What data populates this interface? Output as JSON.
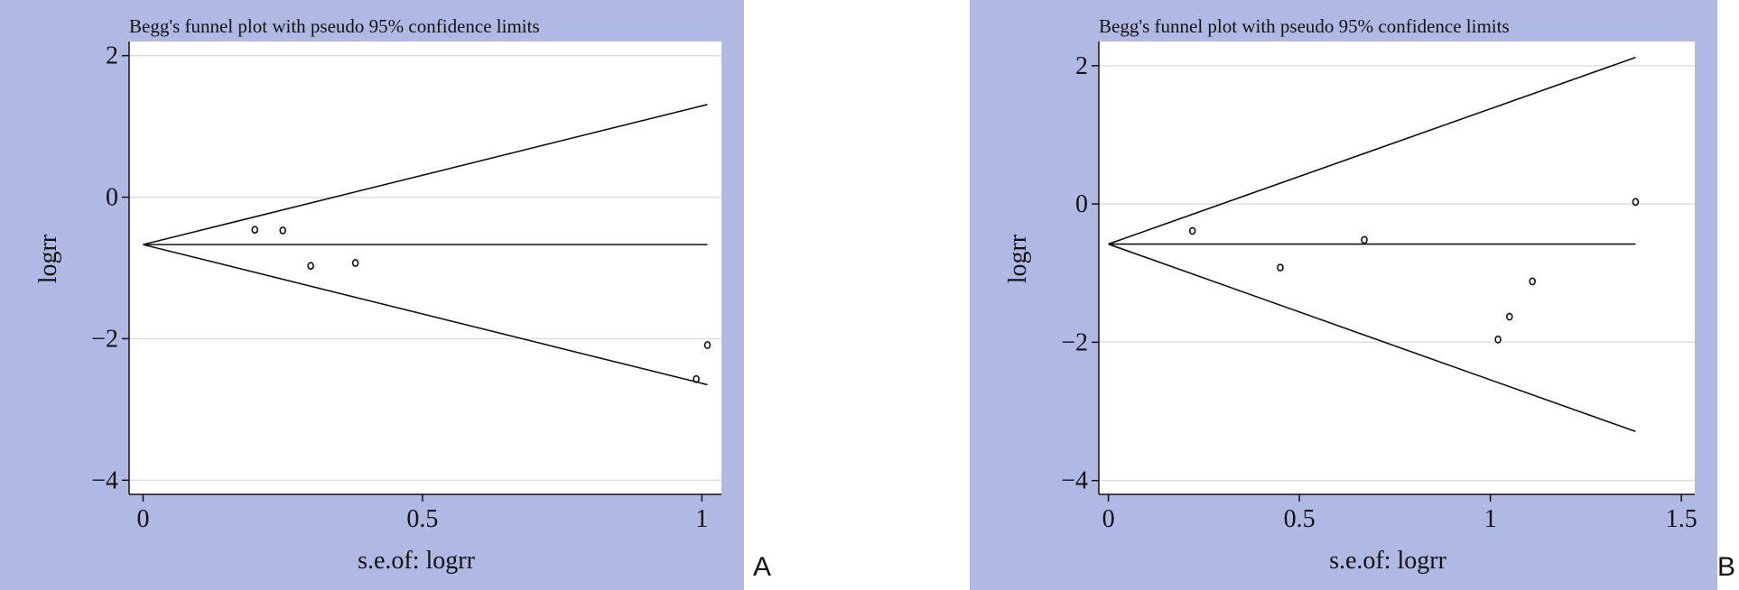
{
  "panel_labels": [
    "A",
    "B"
  ],
  "chart_data": [
    {
      "type": "scatter",
      "panel": "A",
      "title": "Begg's funnel plot with pseudo 95% confidence limits",
      "xlabel": "s.e.of: logrr",
      "ylabel": "logrr",
      "xlim": [
        -0.025,
        1.035
      ],
      "ylim": [
        -4.2,
        2.2
      ],
      "xticks": [
        0,
        0.5,
        1
      ],
      "xtick_labels": [
        "0",
        "0.5",
        "1"
      ],
      "yticks": [
        2,
        0,
        -2,
        -4
      ],
      "ytick_labels": [
        "2",
        "0",
        "−2",
        "−4"
      ],
      "pooled_estimate": -0.67,
      "funnel": {
        "x_max": 1.01,
        "upper_end": 1.31,
        "lower_end": -2.65
      },
      "points": [
        {
          "x": 0.2,
          "y": -0.46
        },
        {
          "x": 0.25,
          "y": -0.47
        },
        {
          "x": 0.3,
          "y": -0.97
        },
        {
          "x": 0.38,
          "y": -0.93
        },
        {
          "x": 0.99,
          "y": -2.57
        },
        {
          "x": 1.01,
          "y": -2.09
        }
      ],
      "grid": true
    },
    {
      "type": "scatter",
      "panel": "B",
      "title": "Begg's funnel plot with pseudo 95% confidence limits",
      "xlabel": "s.e.of: logrr",
      "ylabel": "logrr",
      "xlim": [
        -0.025,
        1.535
      ],
      "ylim": [
        -4.2,
        2.35
      ],
      "xticks": [
        0,
        0.5,
        1,
        1.5
      ],
      "xtick_labels": [
        "0",
        "0.5",
        "1",
        "1.5"
      ],
      "yticks": [
        2,
        0,
        -2,
        -4
      ],
      "ytick_labels": [
        "2",
        "0",
        "−2",
        "−4"
      ],
      "pooled_estimate": -0.58,
      "funnel": {
        "x_max": 1.38,
        "upper_end": 2.12,
        "lower_end": -3.29
      },
      "points": [
        {
          "x": 0.22,
          "y": -0.39
        },
        {
          "x": 0.45,
          "y": -0.92
        },
        {
          "x": 0.67,
          "y": -0.52
        },
        {
          "x": 1.02,
          "y": -1.96
        },
        {
          "x": 1.05,
          "y": -1.63
        },
        {
          "x": 1.11,
          "y": -1.12
        },
        {
          "x": 1.38,
          "y": 0.03
        }
      ],
      "grid": true
    }
  ]
}
